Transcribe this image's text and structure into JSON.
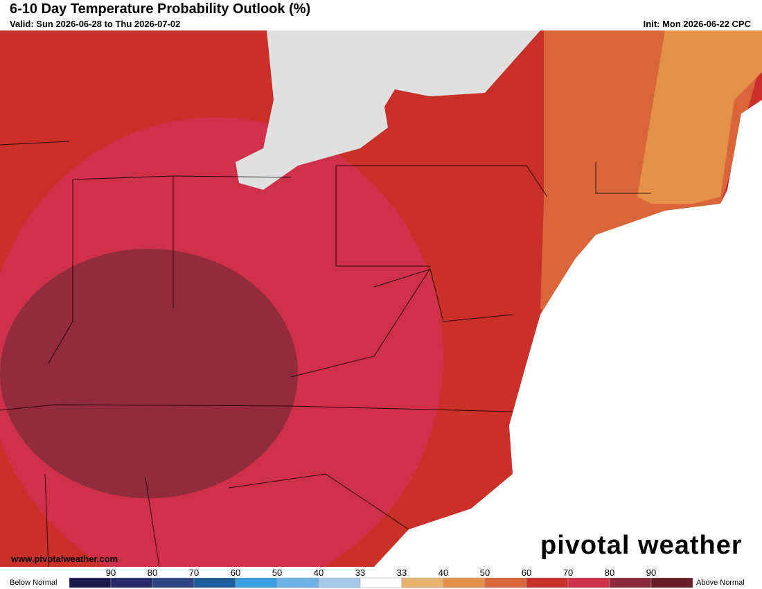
{
  "header": {
    "title": "6-10 Day Temperature Probability Outlook (%)",
    "valid": "Valid: Sun 2026-06-28 to Thu 2026-07-02",
    "init": "Init: Mon 2026-06-22 CPC"
  },
  "watermark": {
    "url": "www.pivotalweather.com",
    "logo": "pivotal weather"
  },
  "legend": {
    "below": "Below Normal",
    "above": "Above Normal",
    "labels": [
      90,
      80,
      70,
      60,
      50,
      40,
      33,
      33,
      40,
      50,
      60,
      70,
      80,
      90
    ],
    "colors": [
      "#1c1a4a",
      "#262a6a",
      "#2f4585",
      "#1f5fa0",
      "#3a9ee0",
      "#6fb3e6",
      "#a6c8ea",
      "#ffffff",
      "#e8b470",
      "#e59048",
      "#d9663a",
      "#c9302a",
      "#d0314a",
      "#8c2a3a",
      "#6a1f28"
    ]
  }
}
